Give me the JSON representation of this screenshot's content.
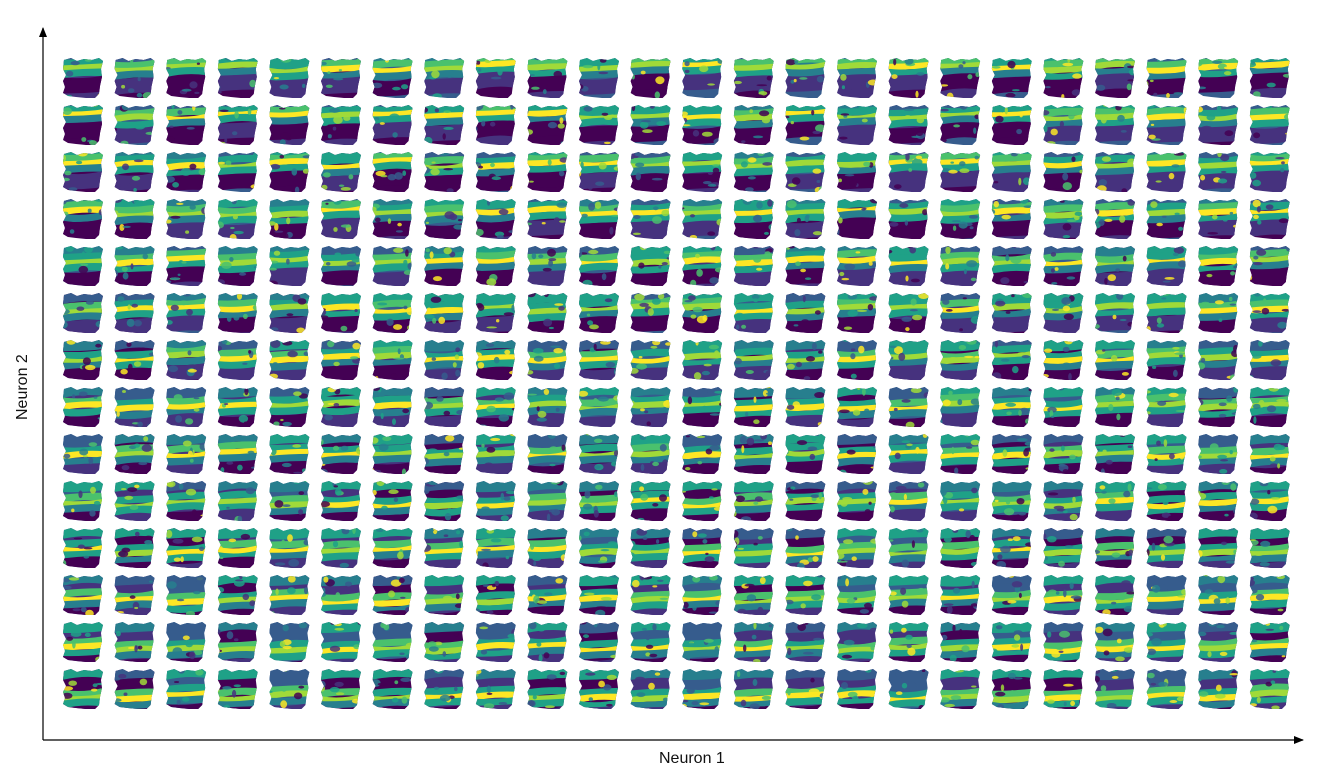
{
  "axes": {
    "x_label": "Neuron 1",
    "y_label": "Neuron 2"
  },
  "grid": {
    "columns": 24,
    "rows": 14,
    "description_of_tiles": "self-organizing map of brain-slice activity maps"
  },
  "colormap": [
    "#440154",
    "#46327e",
    "#365c8d",
    "#277f8e",
    "#1fa187",
    "#4ac16d",
    "#a0da39",
    "#fde725"
  ]
}
